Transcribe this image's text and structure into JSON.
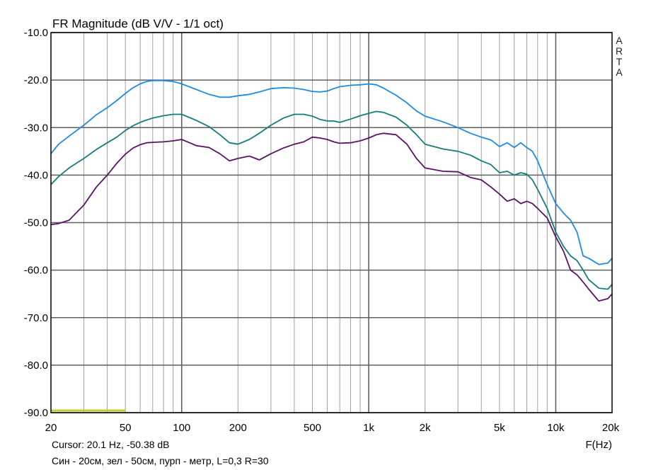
{
  "chart_data": {
    "type": "line",
    "title": "FR Magnitude (dB V/V - 1/1 oct)",
    "xlabel": "F(Hz)",
    "ylabel": "",
    "x_scale": "log",
    "xlim": [
      20,
      20000
    ],
    "ylim": [
      -90,
      -10
    ],
    "grid": true,
    "x_tick_labels": [
      {
        "value": 20,
        "label": "20"
      },
      {
        "value": 50,
        "label": "50"
      },
      {
        "value": 100,
        "label": "100"
      },
      {
        "value": 200,
        "label": "200"
      },
      {
        "value": 500,
        "label": "500"
      },
      {
        "value": 1000,
        "label": "1k"
      },
      {
        "value": 2000,
        "label": "2k"
      },
      {
        "value": 5000,
        "label": "5k"
      },
      {
        "value": 10000,
        "label": "10k"
      },
      {
        "value": 20000,
        "label": "20k"
      }
    ],
    "y_ticks": [
      {
        "value": -10,
        "label": "-10.0"
      },
      {
        "value": -20,
        "label": "-20.0"
      },
      {
        "value": -30,
        "label": "-30.0"
      },
      {
        "value": -40,
        "label": "-40.0"
      },
      {
        "value": -50,
        "label": "-50.0"
      },
      {
        "value": -60,
        "label": "-60.0"
      },
      {
        "value": -70,
        "label": "-70.0"
      },
      {
        "value": -80,
        "label": "-80.0"
      },
      {
        "value": -90,
        "label": "-90.0"
      }
    ],
    "watermark": [
      "A",
      "R",
      "T",
      "A"
    ],
    "cursor_text": "Cursor: 20.1 Hz, -50.38 dB",
    "note": "Син - 20см, зел - 50см, пурп - метр, L=0,3 R=30",
    "colors": {
      "grid": "#a0a0a0",
      "grid_decade": "#606060",
      "marker": "#c8c832",
      "blue": "#1c8ce4",
      "teal": "#127f7a",
      "purple": "#5a1464"
    },
    "marker_band": {
      "x_start": 20,
      "x_end": 50,
      "y": -90
    },
    "series": [
      {
        "color": "#1c8ce4",
        "x": [
          20,
          22,
          25,
          30,
          35,
          40,
          45,
          50,
          55,
          60,
          65,
          70,
          80,
          90,
          100,
          120,
          140,
          160,
          180,
          200,
          230,
          260,
          300,
          350,
          400,
          450,
          500,
          550,
          600,
          650,
          700,
          800,
          900,
          1000,
          1100,
          1200,
          1400,
          1600,
          1800,
          2000,
          2500,
          3000,
          3500,
          4000,
          4500,
          5000,
          5500,
          6000,
          6500,
          7000,
          7500,
          8000,
          9000,
          10000,
          11000,
          12000,
          13000,
          14000,
          15000,
          17000,
          19000,
          20000
        ],
        "y": [
          -35.5,
          -33.5,
          -31.8,
          -29.5,
          -27.3,
          -25.8,
          -24.3,
          -22.8,
          -21.6,
          -20.8,
          -20.3,
          -20.1,
          -20.1,
          -20.3,
          -20.8,
          -22.0,
          -23.0,
          -23.6,
          -23.6,
          -23.3,
          -23.0,
          -22.5,
          -21.8,
          -21.6,
          -21.7,
          -22.0,
          -22.4,
          -22.5,
          -22.3,
          -21.8,
          -21.4,
          -21.1,
          -21.0,
          -20.8,
          -21.0,
          -21.7,
          -23.2,
          -24.8,
          -26.5,
          -27.6,
          -28.8,
          -30.0,
          -31.2,
          -32.0,
          -32.6,
          -34.0,
          -33.2,
          -34.2,
          -33.2,
          -34.2,
          -35.0,
          -37.0,
          -42.0,
          -46.0,
          -48.0,
          -49.5,
          -52.0,
          -57.0,
          -57.5,
          -58.8,
          -58.5,
          -57.5
        ]
      },
      {
        "color": "#127f7a",
        "x": [
          20,
          22,
          25,
          30,
          35,
          40,
          45,
          50,
          55,
          60,
          65,
          70,
          80,
          90,
          100,
          120,
          140,
          160,
          180,
          200,
          230,
          260,
          300,
          350,
          400,
          450,
          500,
          550,
          600,
          650,
          700,
          800,
          900,
          1000,
          1100,
          1200,
          1400,
          1600,
          1800,
          2000,
          2500,
          3000,
          3500,
          4000,
          4500,
          5000,
          5500,
          6000,
          6500,
          7000,
          7500,
          8000,
          9000,
          10000,
          11000,
          12000,
          13000,
          14000,
          15000,
          17000,
          19000,
          20000
        ],
        "y": [
          -42.0,
          -40.3,
          -38.5,
          -36.5,
          -34.6,
          -33.2,
          -32.0,
          -30.6,
          -29.6,
          -28.9,
          -28.4,
          -28.0,
          -27.5,
          -27.2,
          -27.2,
          -28.5,
          -29.8,
          -31.5,
          -33.2,
          -33.5,
          -32.5,
          -31.2,
          -29.5,
          -28.0,
          -27.2,
          -27.2,
          -27.6,
          -28.3,
          -28.6,
          -28.6,
          -28.9,
          -28.2,
          -27.5,
          -27.0,
          -26.6,
          -26.8,
          -27.8,
          -29.5,
          -31.5,
          -33.5,
          -34.5,
          -35.0,
          -35.8,
          -37.0,
          -37.8,
          -39.5,
          -39.2,
          -40.0,
          -39.5,
          -39.8,
          -41.0,
          -43.0,
          -47.0,
          -52.0,
          -55.0,
          -57.0,
          -58.0,
          -60.0,
          -62.0,
          -63.8,
          -64.0,
          -63.0
        ]
      },
      {
        "color": "#5a1464",
        "x": [
          20,
          22,
          25,
          28,
          30,
          35,
          40,
          45,
          50,
          55,
          60,
          65,
          70,
          80,
          90,
          100,
          120,
          140,
          160,
          180,
          200,
          230,
          260,
          300,
          350,
          400,
          450,
          500,
          550,
          600,
          650,
          700,
          800,
          900,
          1000,
          1100,
          1200,
          1400,
          1600,
          1800,
          2000,
          2500,
          3000,
          3500,
          4000,
          4500,
          5000,
          5500,
          6000,
          6500,
          7000,
          7500,
          8000,
          9000,
          10000,
          11000,
          12000,
          13000,
          14000,
          15000,
          17000,
          19000,
          20000
        ],
        "y": [
          -50.4,
          -50.2,
          -49.5,
          -47.5,
          -46.3,
          -42.5,
          -40.0,
          -37.5,
          -35.6,
          -34.3,
          -33.6,
          -33.2,
          -33.1,
          -33.0,
          -32.8,
          -32.5,
          -33.8,
          -34.2,
          -35.5,
          -37.0,
          -36.5,
          -36.0,
          -36.8,
          -35.5,
          -34.3,
          -33.5,
          -33.0,
          -32.0,
          -32.2,
          -32.5,
          -33.0,
          -33.3,
          -33.2,
          -32.8,
          -32.2,
          -31.5,
          -31.2,
          -31.5,
          -33.5,
          -36.5,
          -38.5,
          -39.2,
          -39.3,
          -40.5,
          -41.0,
          -42.5,
          -44.0,
          -45.5,
          -45.0,
          -46.0,
          -45.5,
          -46.0,
          -47.0,
          -49.0,
          -53.0,
          -56.0,
          -60.0,
          -61.0,
          -62.5,
          -64.0,
          -66.5,
          -66.0,
          -65.0
        ]
      }
    ]
  }
}
